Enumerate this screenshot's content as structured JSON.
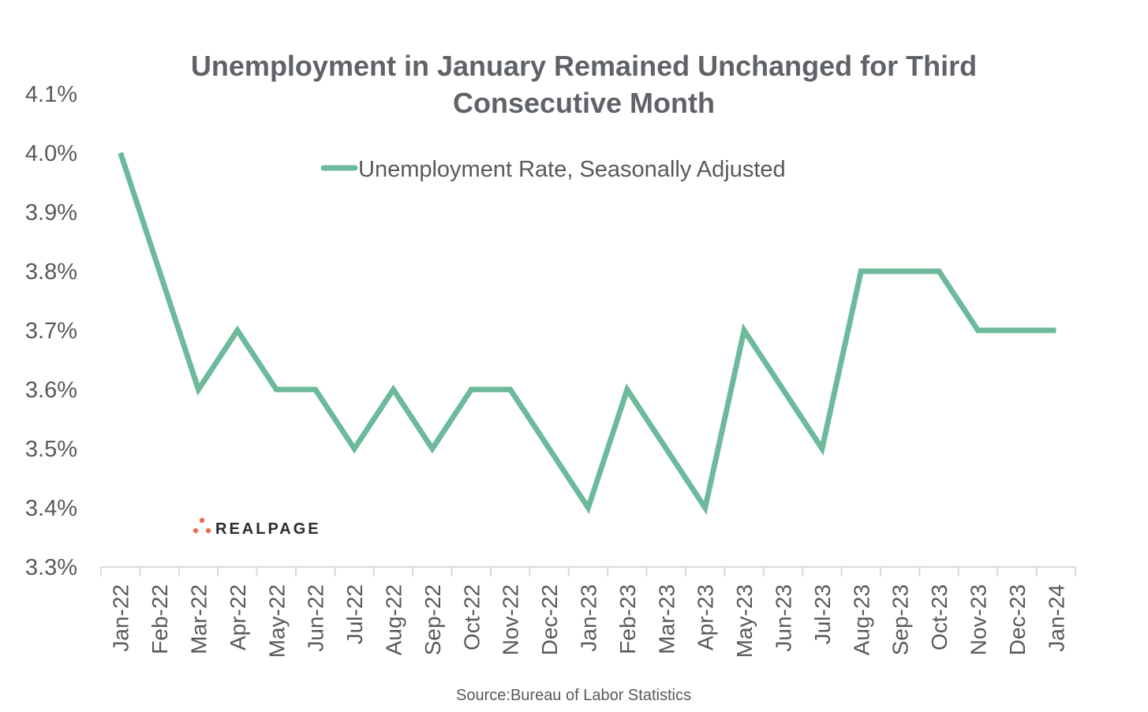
{
  "chart_data": {
    "type": "line",
    "title_lines": [
      "Unemployment in January Remained Unchanged for Third",
      "Consecutive Month"
    ],
    "categories": [
      "Jan-22",
      "Feb-22",
      "Mar-22",
      "Apr-22",
      "May-22",
      "Jun-22",
      "Jul-22",
      "Aug-22",
      "Sep-22",
      "Oct-22",
      "Nov-22",
      "Dec-22",
      "Jan-23",
      "Feb-23",
      "Mar-23",
      "Apr-23",
      "May-23",
      "Jun-23",
      "Jul-23",
      "Aug-23",
      "Sep-23",
      "Oct-23",
      "Nov-23",
      "Dec-23",
      "Jan-24"
    ],
    "series": [
      {
        "name": "Unemployment Rate, Seasonally Adjusted",
        "color": "#6cba9a",
        "values": [
          4.0,
          3.8,
          3.6,
          3.7,
          3.6,
          3.6,
          3.5,
          3.6,
          3.5,
          3.6,
          3.6,
          3.5,
          3.4,
          3.6,
          3.5,
          3.4,
          3.7,
          3.6,
          3.5,
          3.8,
          3.8,
          3.8,
          3.7,
          3.7,
          3.7
        ]
      }
    ],
    "ylim": [
      3.3,
      4.1
    ],
    "yticks": [
      3.3,
      3.4,
      3.5,
      3.6,
      3.7,
      3.8,
      3.9,
      4.0,
      4.1
    ],
    "ytick_labels": [
      "3.3%",
      "3.4%",
      "3.5%",
      "3.6%",
      "3.7%",
      "3.8%",
      "3.9%",
      "4.0%",
      "4.1%"
    ],
    "xlabel": "",
    "ylabel": "",
    "grid": false,
    "legend_position": "top-center"
  },
  "source": "Source:Bureau of Labor Statistics",
  "logo": {
    "text": "REALPAGE",
    "color": "#e8704f"
  },
  "colors": {
    "axis": "#d9d9d9",
    "text": "#595959",
    "title": "#5f6368"
  }
}
